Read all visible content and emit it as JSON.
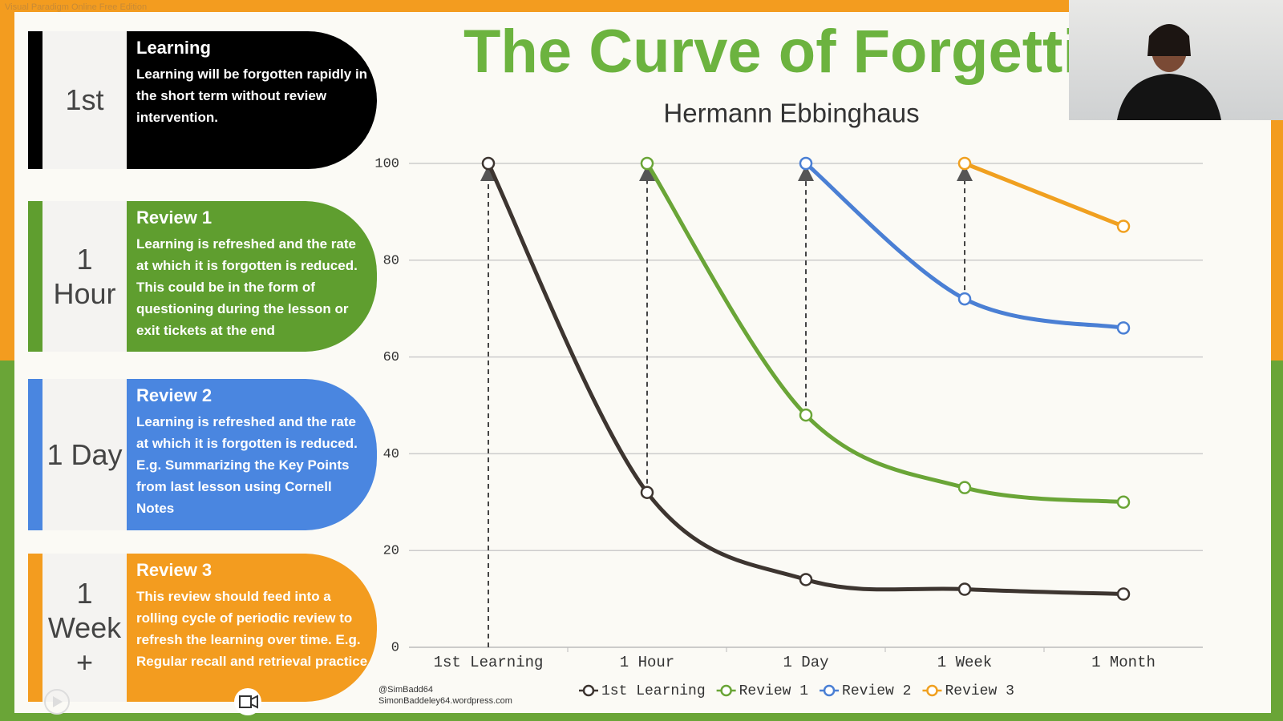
{
  "watermark": "Visual Paradigm Online Free Edition",
  "cards": [
    {
      "label": "1st",
      "heading": "Learning",
      "text": "Learning will be forgotten rapidly in the short term without review intervention.",
      "color": "#000000"
    },
    {
      "label": "1 Hour",
      "heading": "Review 1",
      "text": "Learning is refreshed and the rate at which it is forgotten is reduced. This could be in the form of questioning during the lesson or exit tickets at the end",
      "color": "#5f9e2f"
    },
    {
      "label": "1 Day",
      "heading": "Review 2",
      "text": "Learning is refreshed and the rate at which it is forgotten is reduced.  E.g. Summarizing the Key Points from last lesson using Cornell Notes",
      "color": "#4a86e0"
    },
    {
      "label": "1 Week +",
      "heading": "Review 3",
      "text": "This review should feed into a rolling cycle of periodic review to refresh the learning over time.  E.g. Regular recall and retrieval practice",
      "color": "#f39c1f"
    }
  ],
  "credits": [
    "@SimBadd64",
    "SimonBaddeley64.wordpress.com"
  ],
  "chart_data": {
    "type": "line",
    "title": "The Curve of Forgetting",
    "subtitle": "Hermann Ebbinghaus",
    "categories": [
      "1st Learning",
      "1 Hour",
      "1 Day",
      "1 Week",
      "1 Month"
    ],
    "series": [
      {
        "name": "1st Learning",
        "color": "#3d3530",
        "values": [
          100,
          32,
          14,
          12,
          11
        ]
      },
      {
        "name": "Review 1",
        "color": "#6aa537",
        "values": [
          null,
          100,
          48,
          33,
          30
        ]
      },
      {
        "name": "Review 2",
        "color": "#4a7fd4",
        "values": [
          null,
          null,
          100,
          72,
          66
        ]
      },
      {
        "name": "Review 3",
        "color": "#f0a020",
        "values": [
          null,
          null,
          null,
          100,
          87
        ]
      }
    ],
    "ylim": [
      0,
      100
    ],
    "yticks": [
      0,
      20,
      40,
      60,
      80,
      100
    ],
    "grid": true,
    "legend": "bottom"
  }
}
